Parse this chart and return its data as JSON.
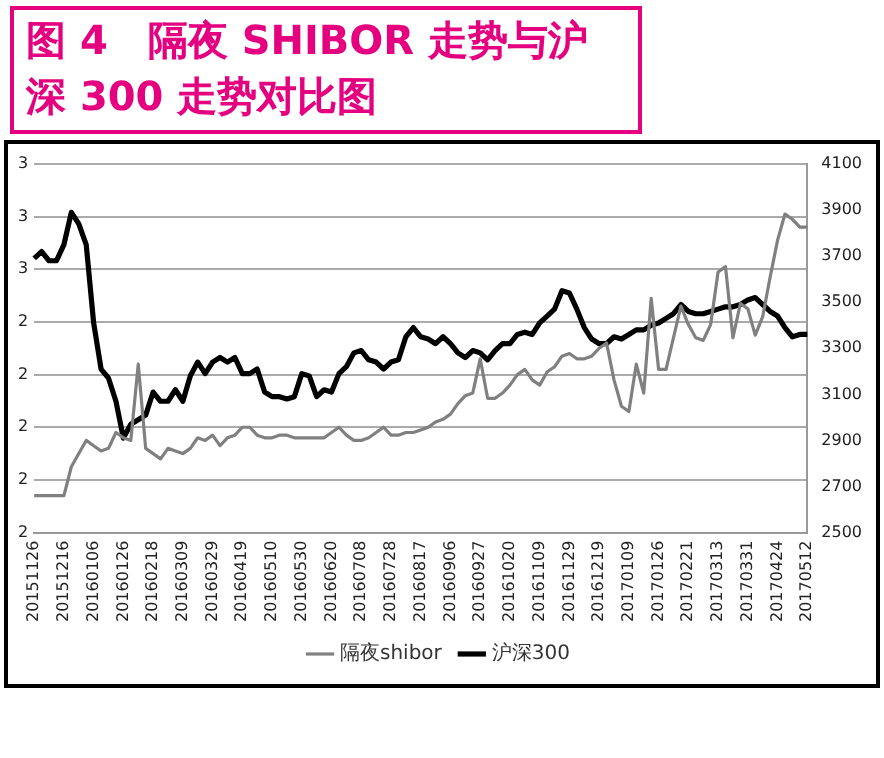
{
  "chart_data": {
    "type": "line",
    "title": "图 4　隔夜 SHIBOR 走势与沪深 300 走势对比图",
    "categories": [
      "20151126",
      null,
      null,
      null,
      "20151216",
      null,
      null,
      null,
      "20160106",
      null,
      null,
      null,
      "20160126",
      null,
      null,
      null,
      "20160218",
      null,
      null,
      null,
      "20160309",
      null,
      null,
      null,
      "20160329",
      null,
      null,
      null,
      "20160419",
      null,
      null,
      null,
      "20160510",
      null,
      null,
      null,
      "20160530",
      null,
      null,
      null,
      "20160620",
      null,
      null,
      null,
      "20160708",
      null,
      null,
      null,
      "20160728",
      null,
      null,
      null,
      "20160817",
      null,
      null,
      null,
      "20160906",
      null,
      null,
      null,
      "20160927",
      null,
      null,
      null,
      "20161020",
      null,
      null,
      null,
      "20161109",
      null,
      null,
      null,
      "20161129",
      null,
      null,
      null,
      "20161219",
      null,
      null,
      null,
      "20170109",
      null,
      null,
      null,
      "20170126",
      null,
      null,
      null,
      "20170221",
      null,
      null,
      null,
      "20170313",
      null,
      null,
      null,
      "20170331",
      null,
      null,
      null,
      "20170424",
      null,
      null,
      null,
      "20170512"
    ],
    "series": [
      {
        "name": "隔夜shibor",
        "color": "#808080",
        "axis": "y",
        "values": [
          1.74,
          1.74,
          1.74,
          1.74,
          1.74,
          1.85,
          1.9,
          1.95,
          1.93,
          1.91,
          1.92,
          1.98,
          1.96,
          1.95,
          2.24,
          1.92,
          1.9,
          1.88,
          1.92,
          1.91,
          1.9,
          1.92,
          1.96,
          1.95,
          1.97,
          1.93,
          1.96,
          1.97,
          2.0,
          2.0,
          1.97,
          1.96,
          1.96,
          1.97,
          1.97,
          1.96,
          1.96,
          1.96,
          1.96,
          1.96,
          1.98,
          2.0,
          1.97,
          1.95,
          1.95,
          1.96,
          1.98,
          2.0,
          1.97,
          1.97,
          1.98,
          1.98,
          1.99,
          2.0,
          2.02,
          2.03,
          2.05,
          2.09,
          2.12,
          2.13,
          2.26,
          2.11,
          2.11,
          2.13,
          2.16,
          2.2,
          2.22,
          2.18,
          2.16,
          2.21,
          2.23,
          2.27,
          2.28,
          2.26,
          2.26,
          2.27,
          2.3,
          2.32,
          2.18,
          2.08,
          2.06,
          2.24,
          2.13,
          2.49,
          2.22,
          2.22,
          2.34,
          2.46,
          2.39,
          2.34,
          2.33,
          2.39,
          2.59,
          2.61,
          2.34,
          2.47,
          2.45,
          2.35,
          2.42,
          2.57,
          2.71,
          2.81,
          2.79,
          2.76,
          2.76
        ]
      },
      {
        "name": "沪深300",
        "color": "#000000",
        "axis": "y2",
        "values": [
          3690,
          3720,
          3680,
          3680,
          3750,
          3890,
          3840,
          3750,
          3410,
          3210,
          3170,
          3070,
          2910,
          2970,
          2990,
          3010,
          3110,
          3070,
          3070,
          3120,
          3070,
          3180,
          3240,
          3190,
          3240,
          3260,
          3240,
          3260,
          3190,
          3190,
          3210,
          3110,
          3090,
          3090,
          3080,
          3090,
          3190,
          3180,
          3090,
          3120,
          3110,
          3190,
          3220,
          3280,
          3290,
          3250,
          3240,
          3210,
          3240,
          3250,
          3350,
          3390,
          3350,
          3340,
          3320,
          3350,
          3320,
          3280,
          3260,
          3290,
          3280,
          3250,
          3290,
          3320,
          3320,
          3360,
          3370,
          3360,
          3410,
          3440,
          3470,
          3550,
          3540,
          3470,
          3390,
          3340,
          3320,
          3320,
          3350,
          3340,
          3360,
          3380,
          3380,
          3400,
          3410,
          3430,
          3450,
          3490,
          3460,
          3450,
          3450,
          3460,
          3470,
          3480,
          3480,
          3490,
          3510,
          3520,
          3490,
          3460,
          3440,
          3390,
          3350,
          3360,
          3360
        ]
      }
    ],
    "ylim": [
      1.6,
      3.0
    ],
    "yticks": [
      {
        "value": 3.0,
        "label": "3"
      },
      {
        "value": 2.8,
        "label": "3"
      },
      {
        "value": 2.6,
        "label": "3"
      },
      {
        "value": 2.4,
        "label": "2"
      },
      {
        "value": 2.2,
        "label": "2"
      },
      {
        "value": 2.0,
        "label": "2"
      },
      {
        "value": 1.8,
        "label": "2"
      },
      {
        "value": 1.6,
        "label": "2"
      }
    ],
    "y2lim": [
      2500,
      4100
    ],
    "y2ticks": [
      2500,
      2700,
      2900,
      3100,
      3300,
      3500,
      3700,
      3900,
      4100
    ],
    "grid": "y",
    "legend": "bottom",
    "marker": "none",
    "line_style": "solid"
  }
}
